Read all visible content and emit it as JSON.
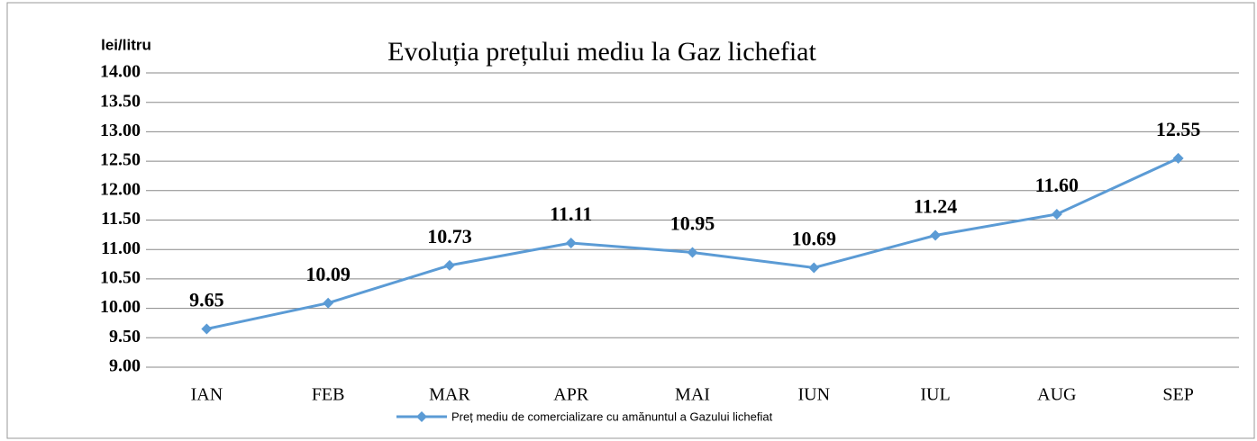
{
  "chart_data": {
    "type": "line",
    "title": "Evoluția prețului mediu la Gaz lichefiat",
    "y_label": "lei/litru",
    "categories": [
      "IAN",
      "FEB",
      "MAR",
      "APR",
      "MAI",
      "IUN",
      "IUL",
      "AUG",
      "SEP"
    ],
    "series": [
      {
        "name": "Preț mediu de comercializare cu amănuntul a Gazului lichefiat",
        "color": "#5b9bd5",
        "values": [
          9.65,
          10.09,
          10.73,
          11.11,
          10.95,
          10.69,
          11.24,
          11.6,
          12.55
        ],
        "value_labels": [
          "9.65",
          "10.09",
          "10.73",
          "11.11",
          "10.95",
          "10.69",
          "11.24",
          "11.60",
          "12.55"
        ]
      }
    ],
    "ylim": [
      9,
      14
    ],
    "yticks": [
      {
        "value": 9,
        "label": "9.00"
      },
      {
        "value": 9.5,
        "label": "9.50"
      },
      {
        "value": 10,
        "label": "10.00"
      },
      {
        "value": 10.5,
        "label": "10.50"
      },
      {
        "value": 11,
        "label": "11.00"
      },
      {
        "value": 11.5,
        "label": "11.50"
      },
      {
        "value": 12,
        "label": "12.00"
      },
      {
        "value": 12.5,
        "label": "12.50"
      },
      {
        "value": 13,
        "label": "13.00"
      },
      {
        "value": 13.5,
        "label": "13.50"
      },
      {
        "value": 14,
        "label": "14.00"
      }
    ],
    "grid": true,
    "legend": "bottom"
  }
}
